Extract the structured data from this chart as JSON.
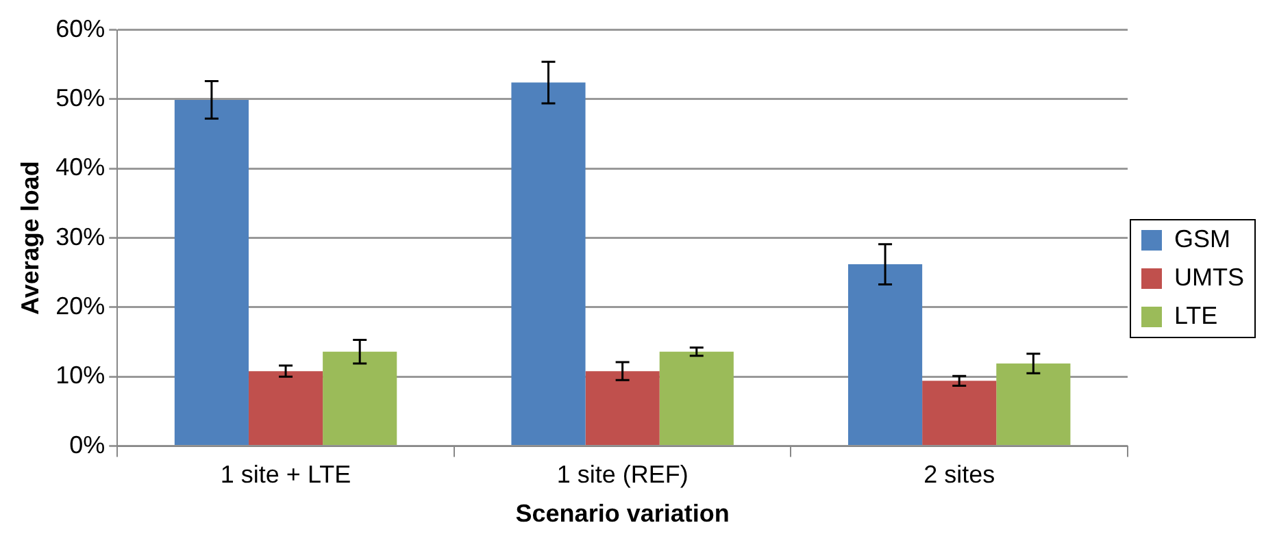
{
  "chart_data": {
    "type": "bar",
    "xlabel": "Scenario variation",
    "ylabel": "Average load",
    "categories": [
      "1 site + LTE",
      "1 site (REF)",
      "2 sites"
    ],
    "series": [
      {
        "name": "GSM",
        "color": "#4f81bd",
        "values": [
          49.9,
          52.4,
          26.2
        ],
        "errors": [
          2.7,
          3.0,
          2.9
        ]
      },
      {
        "name": "UMTS",
        "color": "#c0504d",
        "values": [
          10.8,
          10.8,
          9.4
        ],
        "errors": [
          0.8,
          1.3,
          0.7
        ]
      },
      {
        "name": "LTE",
        "color": "#9bbb59",
        "values": [
          13.6,
          13.6,
          11.9
        ],
        "errors": [
          1.7,
          0.6,
          1.4
        ]
      }
    ],
    "ylim": [
      0,
      60
    ],
    "yticks": [
      {
        "value": 0,
        "label": "0%"
      },
      {
        "value": 10,
        "label": "10%"
      },
      {
        "value": 20,
        "label": "20%"
      },
      {
        "value": 30,
        "label": "30%"
      },
      {
        "value": 40,
        "label": "40%"
      },
      {
        "value": 50,
        "label": "50%"
      },
      {
        "value": 60,
        "label": "60%"
      }
    ],
    "grid": "y",
    "legend": "right"
  }
}
